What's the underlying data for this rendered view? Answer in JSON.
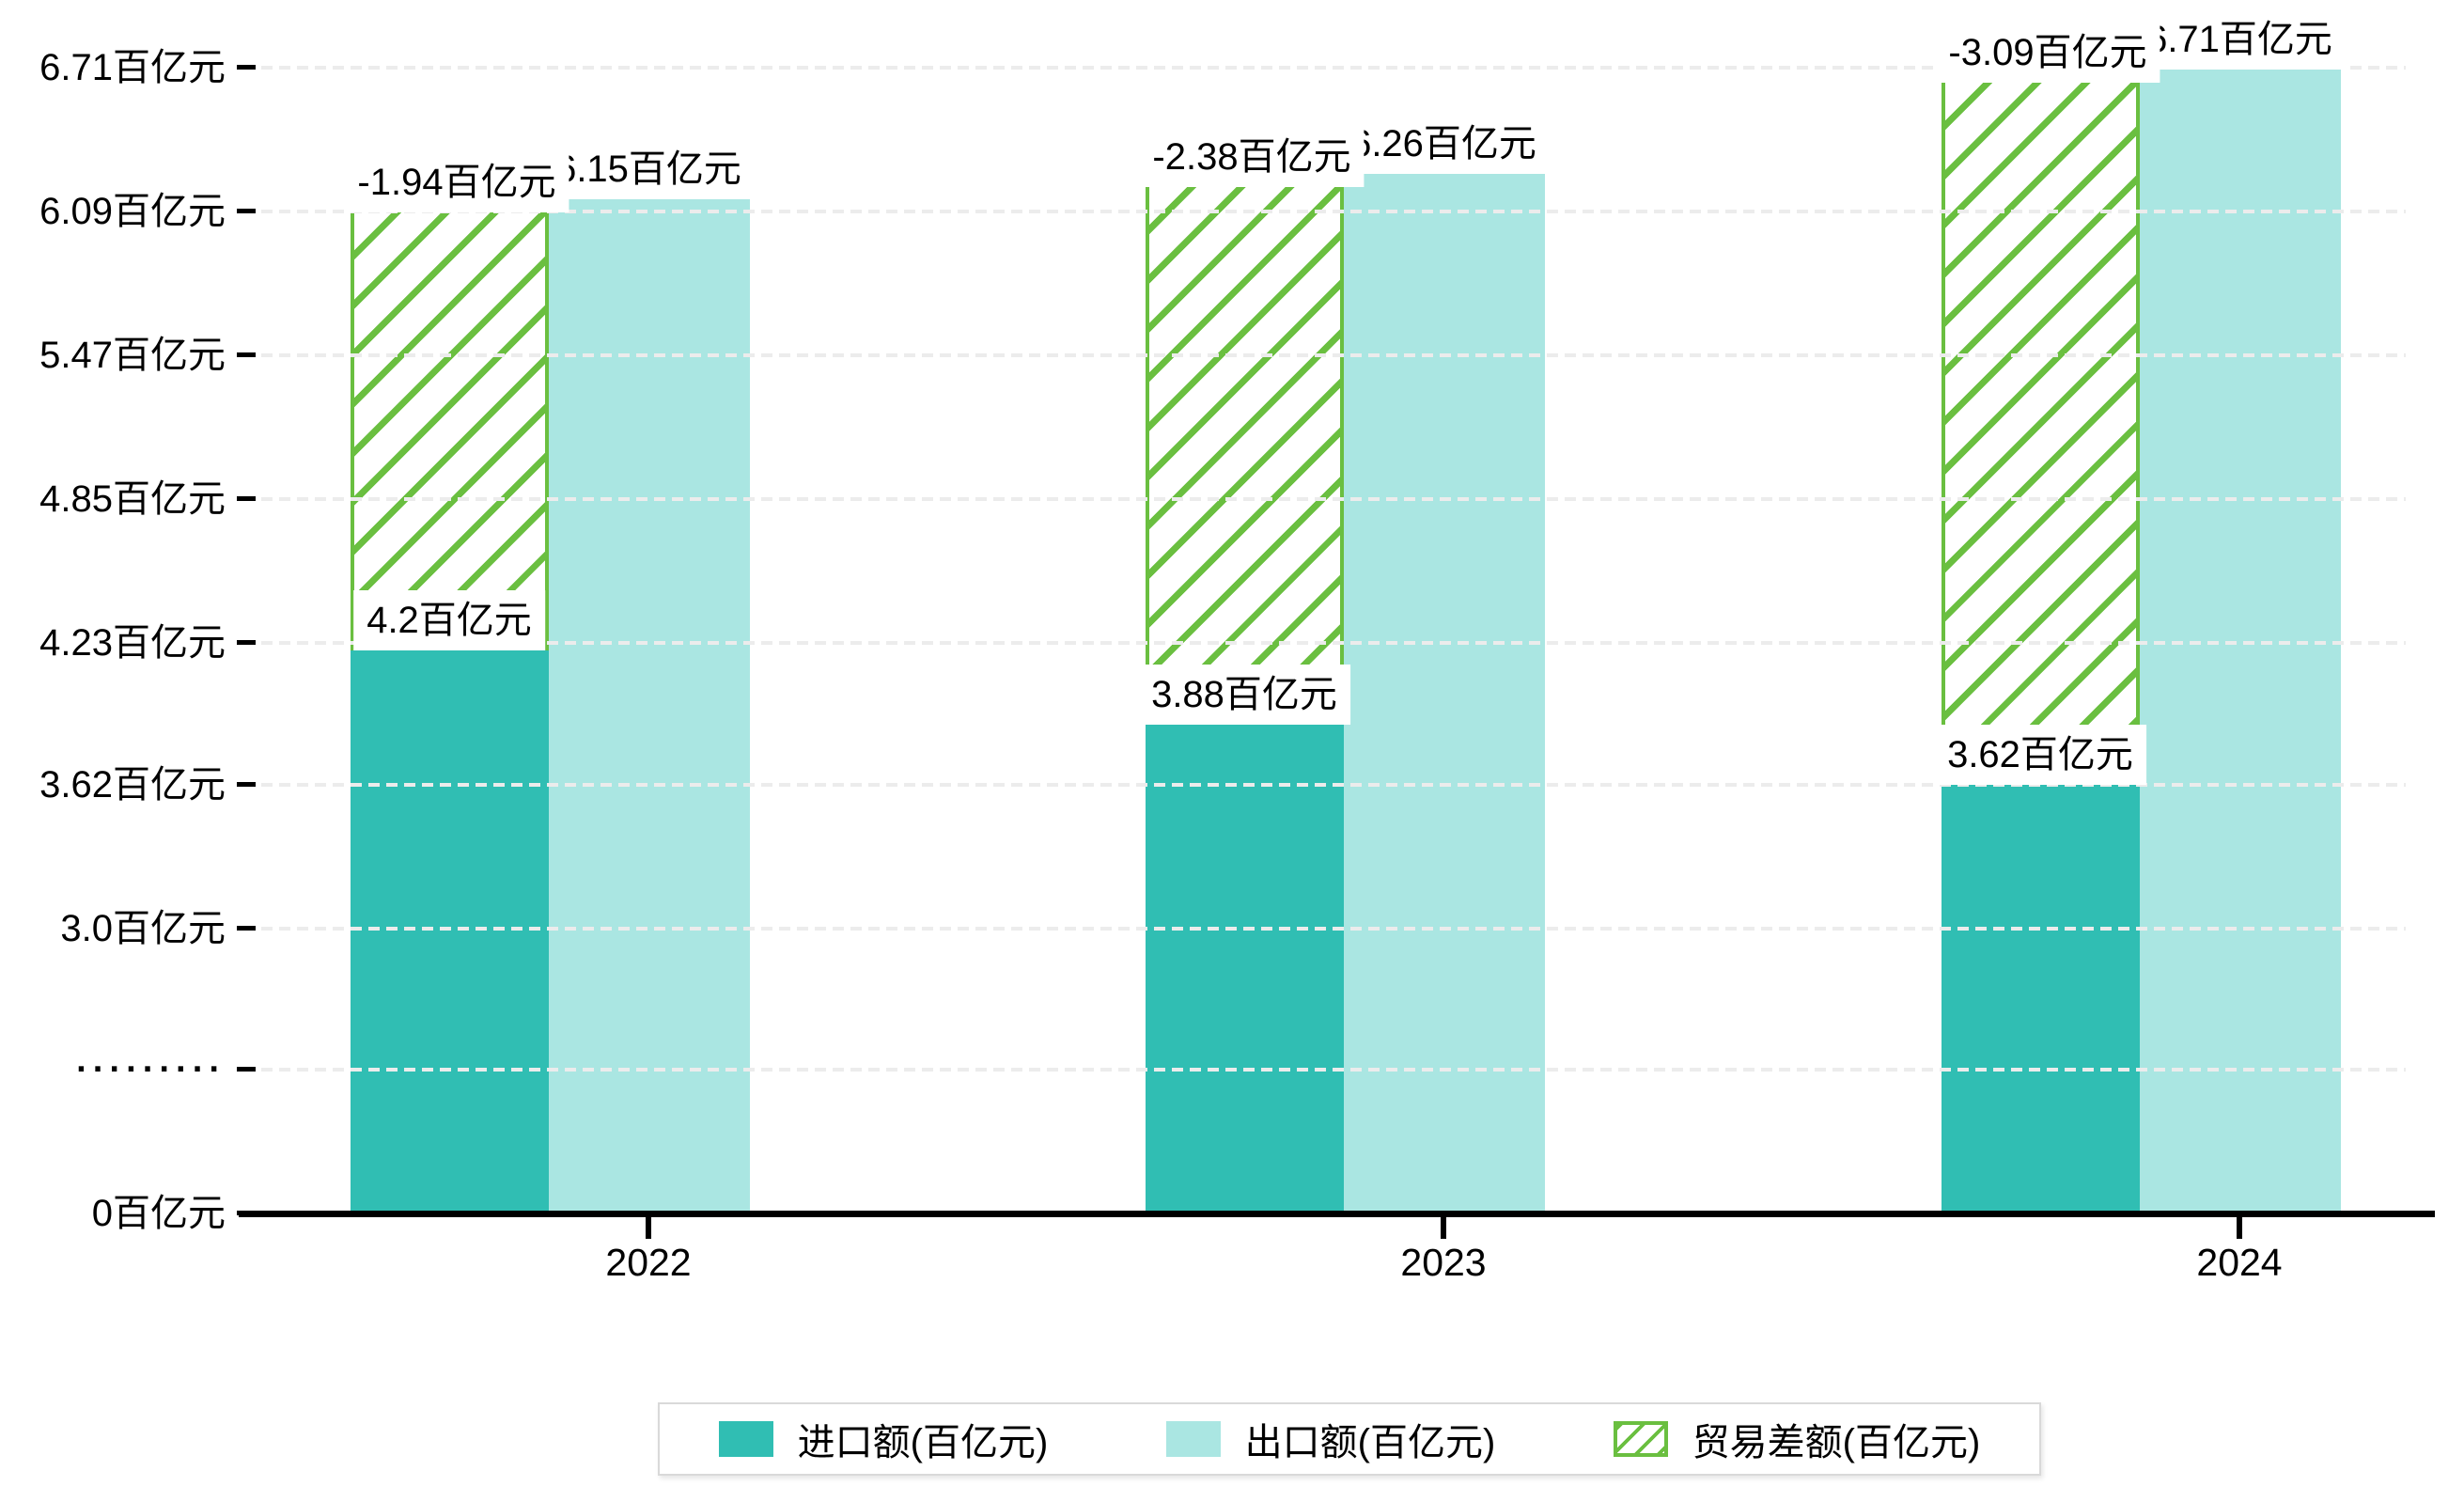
{
  "chart": {
    "background": "#ffffff",
    "unit": "百亿元",
    "text_color": "#000000",
    "gridline_color": "#ececec",
    "axis_color": "#000000"
  },
  "chart_data": {
    "type": "bar",
    "title": "",
    "categories": [
      "2022",
      "2023",
      "2024"
    ],
    "series": [
      {
        "name": "进口额(百亿元)",
        "role": "import",
        "color": "#30beb3",
        "values": [
          4.2,
          3.88,
          3.62
        ],
        "labels": [
          "4.2百亿元",
          "3.88百亿元",
          "3.62百亿元"
        ]
      },
      {
        "name": "出口额(百亿元)",
        "role": "export",
        "color": "#aae6e2",
        "values": [
          6.15,
          6.26,
          6.71
        ],
        "labels": [
          "6.15百亿元",
          "6.26百亿元",
          "6.71百亿元"
        ]
      },
      {
        "name": "贸易差额(百亿元)",
        "role": "trade-balance",
        "color": "#6abf40",
        "pattern": "diagonal-hatch",
        "values": [
          -1.94,
          -2.38,
          -3.09
        ],
        "labels": [
          "-1.94百亿元",
          "-2.38百亿元",
          "-3.09百亿元"
        ]
      }
    ],
    "y_axis": {
      "broken_axis": true,
      "ticks": [
        {
          "label": "6.71百亿元",
          "value": 6.71
        },
        {
          "label": "6.09百亿元",
          "value": 6.09
        },
        {
          "label": "5.47百亿元",
          "value": 5.47
        },
        {
          "label": "4.85百亿元",
          "value": 4.85
        },
        {
          "label": "4.23百亿元",
          "value": 4.23
        },
        {
          "label": "3.62百亿元",
          "value": 3.62
        },
        {
          "label": "3.0百亿元",
          "value": 3.0
        },
        {
          "label": "·········",
          "value": null
        },
        {
          "label": "0百亿元",
          "value": 0
        }
      ]
    },
    "x_axis": {
      "labels": [
        "2022",
        "2023",
        "2024"
      ]
    },
    "legend": {
      "position": "bottom",
      "items": [
        "进口额(百亿元)",
        "出口额(百亿元)",
        "贸易差额(百亿元)"
      ]
    },
    "grid": "dashed horizontal"
  }
}
